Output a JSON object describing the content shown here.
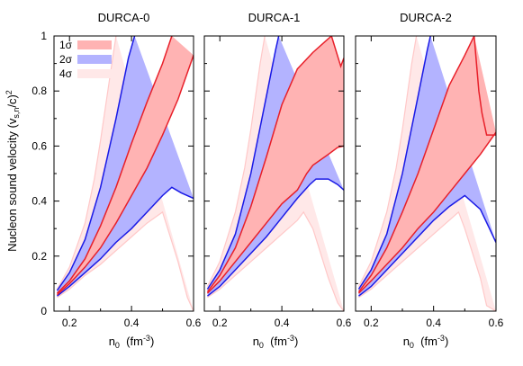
{
  "figure": {
    "ylabel": "Nucleon sound velocity (v",
    "ylabel_sub": "s,n",
    "ylabel_tail": "/c)",
    "ylabel_sup": "2",
    "xlabel_main": "n",
    "xlabel_sub": "0",
    "xlabel_unit_open": "  (fm",
    "xlabel_unit_sup": "-3",
    "xlabel_unit_close": ")"
  },
  "colors": {
    "band_1sigma": "#ffb3b3",
    "band_2sigma": "#b3b3ff",
    "band_4sigma": "#ffe8e8",
    "line_1sigma": "#e8202a",
    "line_2sigma": "#1a1ae6",
    "line_4sigma": "#ffc8c8"
  },
  "legend": {
    "position": "top-left",
    "items": [
      {
        "label": "1σ",
        "color": "#ffb3b3"
      },
      {
        "label": "2σ",
        "color": "#b3b3ff"
      },
      {
        "label": "4σ",
        "color": "#ffe8e8"
      }
    ]
  },
  "chart_data": [
    {
      "type": "area",
      "title": "DURCA-0",
      "xlim": [
        0.15,
        0.6
      ],
      "ylim": [
        0,
        1
      ],
      "xticks": [
        "0.2",
        "0.4",
        "0.6"
      ],
      "yticks": [
        "0",
        "0.2",
        "0.4",
        "0.6",
        "0.8",
        "1"
      ],
      "grid": false,
      "bands": {
        "4sigma_upper": [
          [
            0.16,
            0.08
          ],
          [
            0.2,
            0.16
          ],
          [
            0.25,
            0.32
          ],
          [
            0.28,
            0.48
          ],
          [
            0.3,
            0.62
          ],
          [
            0.33,
            0.85
          ],
          [
            0.35,
            1.0
          ]
        ],
        "4sigma_lower": [
          [
            0.16,
            0.05
          ],
          [
            0.2,
            0.08
          ],
          [
            0.25,
            0.13
          ],
          [
            0.3,
            0.17
          ],
          [
            0.35,
            0.22
          ],
          [
            0.4,
            0.27
          ],
          [
            0.45,
            0.32
          ],
          [
            0.5,
            0.36
          ],
          [
            0.55,
            0.18
          ],
          [
            0.58,
            0.05
          ],
          [
            0.6,
            0.0
          ]
        ],
        "2sigma_upper": [
          [
            0.16,
            0.075
          ],
          [
            0.2,
            0.14
          ],
          [
            0.25,
            0.26
          ],
          [
            0.3,
            0.45
          ],
          [
            0.35,
            0.7
          ],
          [
            0.39,
            0.92
          ],
          [
            0.41,
            1.0
          ]
        ],
        "2sigma_lower": [
          [
            0.16,
            0.055
          ],
          [
            0.2,
            0.09
          ],
          [
            0.25,
            0.14
          ],
          [
            0.3,
            0.19
          ],
          [
            0.35,
            0.25
          ],
          [
            0.4,
            0.3
          ],
          [
            0.45,
            0.36
          ],
          [
            0.5,
            0.42
          ],
          [
            0.53,
            0.45
          ],
          [
            0.56,
            0.43
          ],
          [
            0.6,
            0.41
          ]
        ],
        "1sigma_upper": [
          [
            0.16,
            0.065
          ],
          [
            0.2,
            0.11
          ],
          [
            0.25,
            0.19
          ],
          [
            0.3,
            0.31
          ],
          [
            0.35,
            0.45
          ],
          [
            0.4,
            0.61
          ],
          [
            0.45,
            0.76
          ],
          [
            0.5,
            0.9
          ],
          [
            0.53,
            1.0
          ]
        ],
        "1sigma_lower": [
          [
            0.16,
            0.06
          ],
          [
            0.2,
            0.1
          ],
          [
            0.25,
            0.16
          ],
          [
            0.3,
            0.23
          ],
          [
            0.35,
            0.32
          ],
          [
            0.4,
            0.42
          ],
          [
            0.45,
            0.52
          ],
          [
            0.5,
            0.64
          ],
          [
            0.55,
            0.77
          ],
          [
            0.6,
            0.93
          ]
        ]
      }
    },
    {
      "type": "area",
      "title": "DURCA-1",
      "xlim": [
        0.15,
        0.6
      ],
      "ylim": [
        0,
        1
      ],
      "xticks": [
        "0.2",
        "0.4",
        "0.6"
      ],
      "yticks": [],
      "grid": false,
      "bands": {
        "4sigma_upper": [
          [
            0.16,
            0.09
          ],
          [
            0.2,
            0.18
          ],
          [
            0.25,
            0.36
          ],
          [
            0.28,
            0.52
          ],
          [
            0.3,
            0.66
          ],
          [
            0.33,
            0.9
          ],
          [
            0.345,
            1.0
          ]
        ],
        "4sigma_lower": [
          [
            0.16,
            0.05
          ],
          [
            0.2,
            0.08
          ],
          [
            0.25,
            0.13
          ],
          [
            0.3,
            0.18
          ],
          [
            0.35,
            0.23
          ],
          [
            0.4,
            0.28
          ],
          [
            0.45,
            0.33
          ],
          [
            0.47,
            0.36
          ],
          [
            0.5,
            0.3
          ],
          [
            0.55,
            0.12
          ],
          [
            0.58,
            0.03
          ],
          [
            0.6,
            0.0
          ]
        ],
        "2sigma_upper": [
          [
            0.16,
            0.08
          ],
          [
            0.2,
            0.15
          ],
          [
            0.25,
            0.28
          ],
          [
            0.3,
            0.5
          ],
          [
            0.35,
            0.78
          ],
          [
            0.38,
            0.95
          ],
          [
            0.39,
            1.0
          ]
        ],
        "2sigma_lower": [
          [
            0.16,
            0.055
          ],
          [
            0.2,
            0.09
          ],
          [
            0.25,
            0.15
          ],
          [
            0.3,
            0.21
          ],
          [
            0.35,
            0.27
          ],
          [
            0.4,
            0.34
          ],
          [
            0.45,
            0.41
          ],
          [
            0.49,
            0.46
          ],
          [
            0.51,
            0.48
          ],
          [
            0.55,
            0.48
          ],
          [
            0.58,
            0.46
          ],
          [
            0.6,
            0.44
          ]
        ],
        "1sigma_upper": [
          [
            0.16,
            0.07
          ],
          [
            0.2,
            0.13
          ],
          [
            0.25,
            0.23
          ],
          [
            0.3,
            0.38
          ],
          [
            0.35,
            0.56
          ],
          [
            0.4,
            0.75
          ],
          [
            0.45,
            0.88
          ],
          [
            0.5,
            0.94
          ],
          [
            0.54,
            0.98
          ],
          [
            0.56,
            1.0
          ],
          [
            0.59,
            0.89
          ],
          [
            0.6,
            0.92
          ]
        ],
        "1sigma_lower": [
          [
            0.16,
            0.065
          ],
          [
            0.2,
            0.11
          ],
          [
            0.25,
            0.18
          ],
          [
            0.3,
            0.25
          ],
          [
            0.35,
            0.32
          ],
          [
            0.4,
            0.39
          ],
          [
            0.45,
            0.44
          ],
          [
            0.48,
            0.5
          ],
          [
            0.5,
            0.53
          ],
          [
            0.55,
            0.57
          ],
          [
            0.58,
            0.595
          ],
          [
            0.6,
            0.6
          ]
        ]
      }
    },
    {
      "type": "area",
      "title": "DURCA-2",
      "xlim": [
        0.15,
        0.6
      ],
      "ylim": [
        0,
        1
      ],
      "xticks": [
        "0.2",
        "0.4",
        "0.6"
      ],
      "yticks": [],
      "grid": false,
      "bands": {
        "4sigma_upper": [
          [
            0.16,
            0.09
          ],
          [
            0.2,
            0.18
          ],
          [
            0.25,
            0.36
          ],
          [
            0.28,
            0.52
          ],
          [
            0.3,
            0.66
          ],
          [
            0.33,
            0.9
          ],
          [
            0.345,
            1.0
          ]
        ],
        "4sigma_lower": [
          [
            0.16,
            0.05
          ],
          [
            0.2,
            0.08
          ],
          [
            0.25,
            0.13
          ],
          [
            0.3,
            0.18
          ],
          [
            0.35,
            0.23
          ],
          [
            0.4,
            0.28
          ],
          [
            0.45,
            0.33
          ],
          [
            0.48,
            0.36
          ],
          [
            0.5,
            0.3
          ],
          [
            0.55,
            0.12
          ],
          [
            0.57,
            0.02
          ],
          [
            0.6,
            0.0
          ]
        ],
        "2sigma_upper": [
          [
            0.16,
            0.08
          ],
          [
            0.2,
            0.15
          ],
          [
            0.25,
            0.28
          ],
          [
            0.3,
            0.5
          ],
          [
            0.35,
            0.78
          ],
          [
            0.38,
            0.95
          ],
          [
            0.39,
            1.0
          ]
        ],
        "2sigma_lower": [
          [
            0.16,
            0.055
          ],
          [
            0.2,
            0.09
          ],
          [
            0.25,
            0.15
          ],
          [
            0.3,
            0.21
          ],
          [
            0.35,
            0.27
          ],
          [
            0.4,
            0.33
          ],
          [
            0.45,
            0.38
          ],
          [
            0.5,
            0.42
          ],
          [
            0.55,
            0.37
          ],
          [
            0.6,
            0.25
          ]
        ],
        "1sigma_upper": [
          [
            0.16,
            0.07
          ],
          [
            0.2,
            0.13
          ],
          [
            0.25,
            0.23
          ],
          [
            0.3,
            0.36
          ],
          [
            0.35,
            0.5
          ],
          [
            0.4,
            0.66
          ],
          [
            0.45,
            0.82
          ],
          [
            0.5,
            0.93
          ],
          [
            0.53,
            1.0
          ]
        ],
        "1sigma_lower": [
          [
            0.16,
            0.065
          ],
          [
            0.2,
            0.11
          ],
          [
            0.25,
            0.17
          ],
          [
            0.3,
            0.23
          ],
          [
            0.35,
            0.3
          ],
          [
            0.4,
            0.36
          ],
          [
            0.45,
            0.43
          ],
          [
            0.5,
            0.5
          ],
          [
            0.55,
            0.57
          ],
          [
            0.6,
            0.65
          ]
        ]
      },
      "extra_lines": {
        "1sigma_right_edge": [
          [
            0.53,
            1.0
          ],
          [
            0.545,
            0.8
          ],
          [
            0.555,
            0.72
          ],
          [
            0.57,
            0.64
          ],
          [
            0.6,
            0.64
          ]
        ],
        "2sigma_right_edge": [
          [
            0.565,
            1.0
          ],
          [
            0.58,
            0.75
          ],
          [
            0.6,
            0.58
          ]
        ]
      }
    }
  ]
}
